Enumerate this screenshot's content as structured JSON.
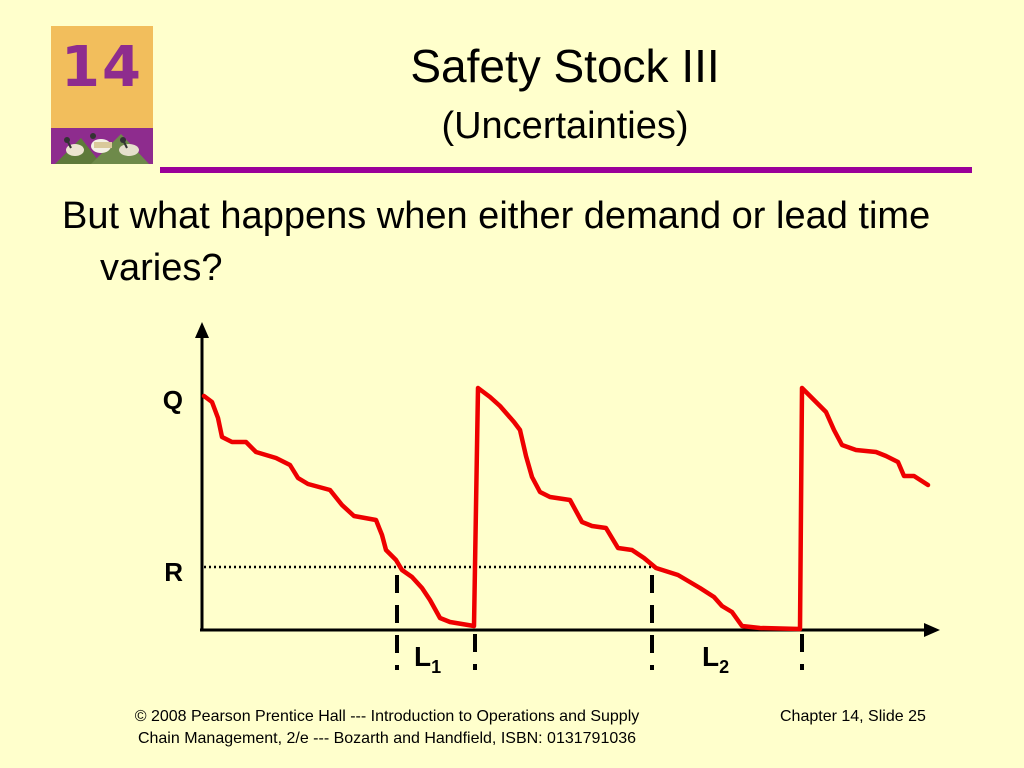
{
  "slide": {
    "badge_number": "14",
    "title": "Safety Stock III",
    "subtitle": "(Uncertainties)",
    "bullet": "But what happens when either demand or lead time varies?"
  },
  "diagram": {
    "y_label_q": "Q",
    "y_label_r": "R",
    "lead_time_labels": [
      {
        "main": "L",
        "sub": "1"
      },
      {
        "main": "L",
        "sub": "2"
      }
    ],
    "colors": {
      "inventory_line": "#EE0000",
      "axis": "#000000",
      "accent": "#990099"
    }
  },
  "footer": {
    "left_line1": "© 2008 Pearson Prentice Hall --- Introduction to Operations and Supply",
    "left_line2": "Chain Management, 2/e --- Bozarth and Handfield, ISBN: 0131791036",
    "right": "Chapter 14, Slide 25"
  }
}
